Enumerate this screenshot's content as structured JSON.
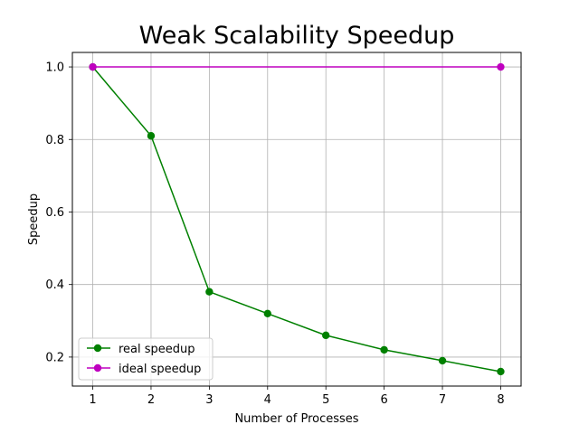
{
  "chart_data": {
    "type": "line",
    "title": "Weak Scalability Speedup",
    "xlabel": "Number of Processes",
    "ylabel": "Speedup",
    "x": [
      1,
      2,
      3,
      4,
      5,
      6,
      7,
      8
    ],
    "x_ticks": [
      "1",
      "2",
      "3",
      "4",
      "5",
      "6",
      "7",
      "8"
    ],
    "y_ticks": [
      "0.2",
      "0.4",
      "0.6",
      "0.8",
      "1.0"
    ],
    "xlim": [
      0.65,
      8.35
    ],
    "ylim": [
      0.12,
      1.04
    ],
    "grid": true,
    "legend_position": "lower-left",
    "series": [
      {
        "name": "real speedup",
        "color": "#008000",
        "marker": "circle",
        "values": [
          1.0,
          0.81,
          0.38,
          0.32,
          0.26,
          0.22,
          0.19,
          0.16
        ]
      },
      {
        "name": "ideal speedup",
        "color": "#bf00bf",
        "marker": "circle",
        "values": [
          1.0,
          null,
          null,
          null,
          null,
          null,
          null,
          1.0
        ]
      }
    ]
  }
}
